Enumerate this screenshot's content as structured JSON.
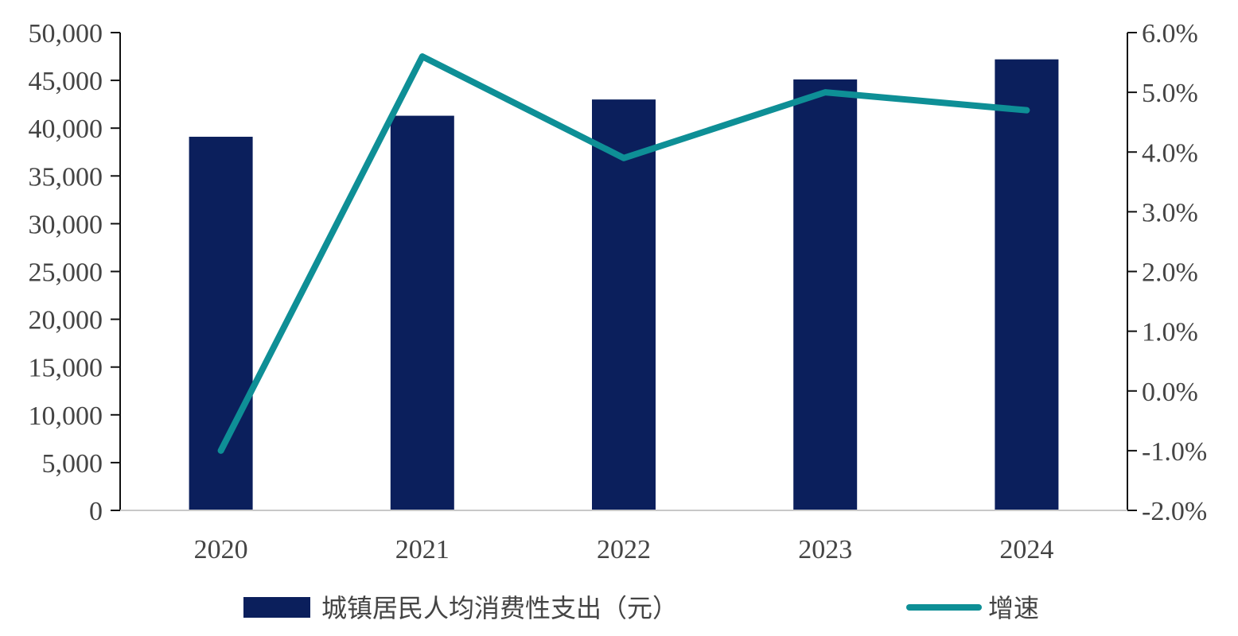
{
  "chart_data": {
    "type": "bar",
    "categories": [
      "2020",
      "2021",
      "2022",
      "2023",
      "2024"
    ],
    "series": [
      {
        "name": "城镇居民人均消费性支出（元）",
        "type": "bar",
        "axis": "left",
        "color": "#0b1f5c",
        "values": [
          39100,
          41300,
          43000,
          45100,
          47200
        ]
      },
      {
        "name": "增速",
        "type": "line",
        "axis": "right",
        "color": "#0e8f96",
        "values": [
          -1.0,
          5.6,
          3.9,
          5.0,
          4.7
        ]
      }
    ],
    "y_left": {
      "range": [
        0,
        50000
      ],
      "ticks": [
        "0",
        "5,000",
        "10,000",
        "15,000",
        "20,000",
        "25,000",
        "30,000",
        "35,000",
        "40,000",
        "45,000",
        "50,000"
      ]
    },
    "y_right": {
      "range": [
        -2.0,
        6.0
      ],
      "ticks": [
        "-2.0%",
        "-1.0%",
        "0.0%",
        "1.0%",
        "2.0%",
        "3.0%",
        "4.0%",
        "5.0%",
        "6.0%"
      ]
    },
    "grid": false,
    "legend_position": "bottom"
  }
}
